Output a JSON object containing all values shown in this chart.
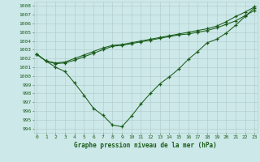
{
  "title": "Graphe pression niveau de la mer (hPa)",
  "xlim": [
    -0.3,
    23.3
  ],
  "ylim": [
    993.5,
    1008.5
  ],
  "yticks": [
    994,
    995,
    996,
    997,
    998,
    999,
    1000,
    1001,
    1002,
    1003,
    1004,
    1005,
    1006,
    1007,
    1008
  ],
  "xticks": [
    0,
    1,
    2,
    3,
    4,
    5,
    6,
    7,
    8,
    9,
    10,
    11,
    12,
    13,
    14,
    15,
    16,
    17,
    18,
    19,
    20,
    21,
    22,
    23
  ],
  "background_color": "#cce8e8",
  "grid_color": "#b0c8c8",
  "line_color": "#1a5c1a",
  "series": [
    [
      1002.5,
      1001.7,
      1001.0,
      1000.5,
      999.2,
      997.8,
      996.3,
      995.5,
      994.4,
      994.2,
      995.4,
      996.8,
      998.0,
      999.1,
      999.9,
      1000.8,
      1001.9,
      1002.8,
      1003.8,
      1004.2,
      1004.9,
      1005.8,
      1006.8,
      1007.8
    ],
    [
      1002.5,
      1001.7,
      1001.4,
      1001.5,
      1001.8,
      1002.2,
      1002.6,
      1003.0,
      1003.4,
      1003.5,
      1003.7,
      1003.9,
      1004.1,
      1004.3,
      1004.5,
      1004.7,
      1004.8,
      1005.0,
      1005.2,
      1005.5,
      1005.9,
      1006.3,
      1006.9,
      1007.5
    ],
    [
      1002.5,
      1001.7,
      1001.5,
      1001.6,
      1002.0,
      1002.4,
      1002.8,
      1003.2,
      1003.5,
      1003.6,
      1003.8,
      1004.0,
      1004.2,
      1004.4,
      1004.6,
      1004.8,
      1005.0,
      1005.2,
      1005.4,
      1005.7,
      1006.2,
      1006.8,
      1007.3,
      1007.9
    ]
  ],
  "figsize": [
    3.2,
    2.0
  ],
  "dpi": 100
}
